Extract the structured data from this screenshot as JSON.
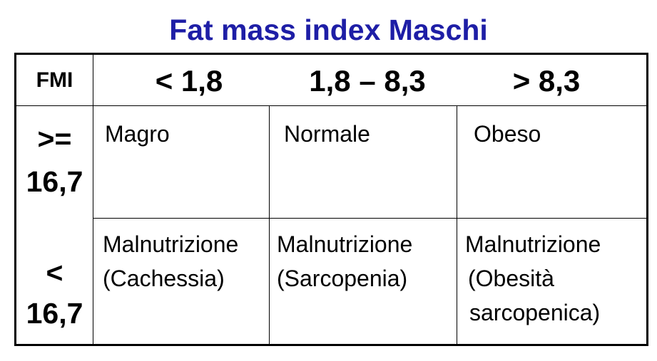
{
  "title": "Fat mass index Maschi",
  "table": {
    "corner": "FMI",
    "columns": [
      "< 1,8",
      "1,8 – 8,3",
      "> 8,3"
    ],
    "rows": [
      {
        "label": [
          ">=",
          "16,7"
        ],
        "cells": [
          [
            "Magro"
          ],
          [
            "Normale"
          ],
          [
            "Obeso"
          ]
        ]
      },
      {
        "label": [
          "<",
          "16,7"
        ],
        "cells": [
          [
            "Malnutrizione",
            "(Cachessia)"
          ],
          [
            "Malnutrizione",
            "(Sarcopenia)"
          ],
          [
            "Malnutrizione",
            "(Obesità",
            "sarcopenica)"
          ]
        ]
      }
    ]
  }
}
